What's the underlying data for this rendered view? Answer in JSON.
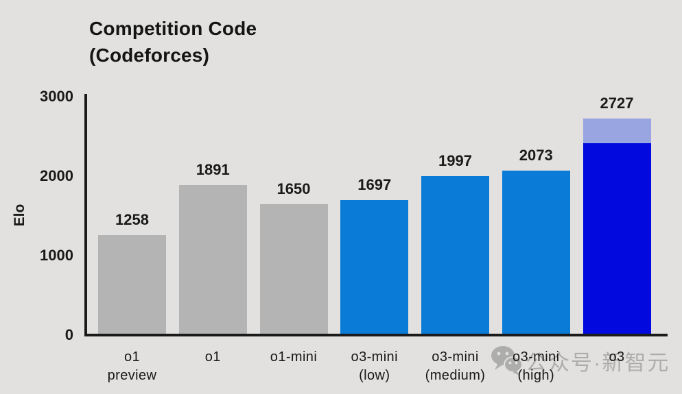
{
  "title": {
    "line1": "Competition Code",
    "line2": "(Codeforces)"
  },
  "colors": {
    "background": "#e2e1df",
    "axis": "#1a1a1a",
    "gray": "#b4b4b4",
    "blue": "#0a7bd6",
    "darkblue": "#0109df",
    "periwinkle": "#99a5e0",
    "text": "#161616",
    "watermark": "#8e8e8e"
  },
  "watermark": {
    "icon": "wechat-bubbles-icon",
    "text": "公众号·新智元"
  },
  "chart_data": {
    "type": "bar",
    "title": "Competition Code (Codeforces)",
    "xlabel": "",
    "ylabel": "Elo",
    "ylim": [
      0,
      3000
    ],
    "yticks": [
      0,
      1000,
      2000,
      3000
    ],
    "grid": false,
    "legend": "none",
    "categories": [
      "o1 preview",
      "o1",
      "o1-mini",
      "o3-mini (low)",
      "o3-mini (medium)",
      "o3-mini (high)",
      "o3"
    ],
    "bars": [
      {
        "label_lines": [
          "o1",
          "preview"
        ],
        "value": 1258,
        "display_value": "1258",
        "color_key": "gray"
      },
      {
        "label_lines": [
          "o1"
        ],
        "value": 1891,
        "display_value": "1891",
        "color_key": "gray"
      },
      {
        "label_lines": [
          "o1-mini"
        ],
        "value": 1650,
        "display_value": "1650",
        "color_key": "gray"
      },
      {
        "label_lines": [
          "o3-mini",
          "(low)"
        ],
        "value": 1697,
        "display_value": "1697",
        "color_key": "blue"
      },
      {
        "label_lines": [
          "o3-mini",
          "(medium)"
        ],
        "value": 1997,
        "display_value": "1997",
        "color_key": "blue"
      },
      {
        "label_lines": [
          "o3-mini",
          "(high)"
        ],
        "value": 2073,
        "display_value": "2073",
        "color_key": "blue"
      },
      {
        "label_lines": [
          "o3"
        ],
        "value": 2727,
        "display_value": "2727",
        "color_key": "stacked",
        "segments": [
          {
            "value": 2410,
            "color_key": "darkblue"
          },
          {
            "value": 317,
            "color_key": "periwinkle"
          }
        ]
      }
    ]
  }
}
